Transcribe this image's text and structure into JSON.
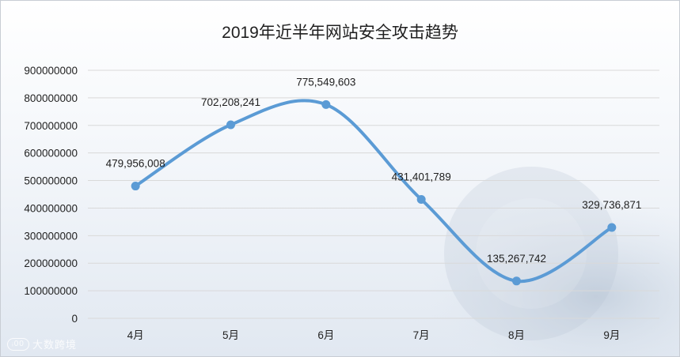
{
  "title": "2019年近半年网站安全攻击趋势",
  "watermark": {
    "logo": "ᵢ00",
    "text": "大数跨境"
  },
  "colors": {
    "line": "#5b9bd5",
    "grid": "#d9d9d9",
    "text": "#222222"
  },
  "chart_data": {
    "type": "line",
    "smooth": true,
    "title": "2019年近半年网站安全攻击趋势",
    "categories": [
      "4月",
      "5月",
      "6月",
      "7月",
      "8月",
      "9月"
    ],
    "series": [
      {
        "values": [
          479956008,
          702208241,
          775549603,
          431401789,
          135267742,
          329736871
        ],
        "data_labels": [
          "479,956,008",
          "702,208,241",
          "775,549,603",
          "431,401,789",
          "135,267,742",
          "329,736,871"
        ]
      }
    ],
    "ylim": [
      0,
      900000000
    ],
    "yticks": [
      "0",
      "100000000",
      "200000000",
      "300000000",
      "400000000",
      "500000000",
      "600000000",
      "700000000",
      "800000000",
      "900000000"
    ],
    "grid": true,
    "legend": "none",
    "xlabel": "",
    "ylabel": ""
  }
}
